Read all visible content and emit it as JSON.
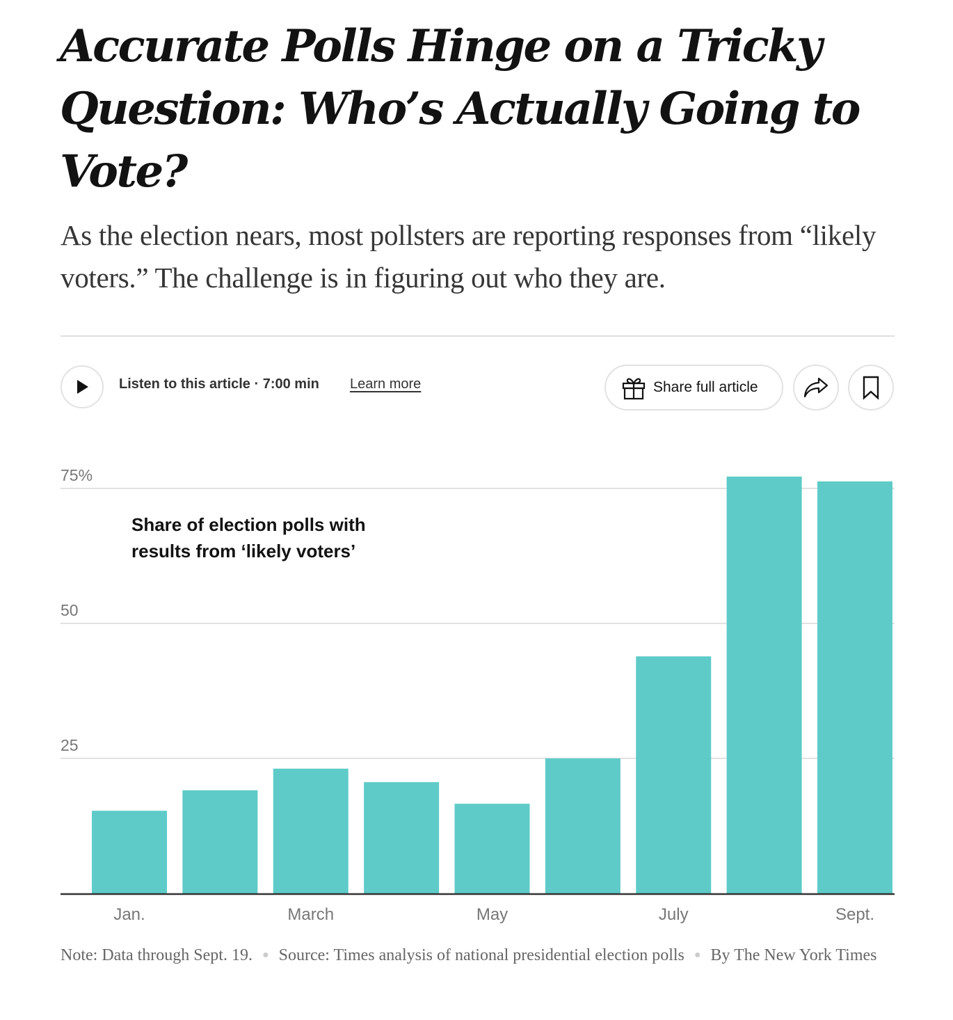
{
  "article": {
    "headline": "Accurate Polls Hinge on a Tricky Question: Who’s Actually Going to Vote?",
    "summary": "As the election nears, most pollsters are reporting responses from “likely voters.” The challenge is in figuring out who they are."
  },
  "toolbar": {
    "play_icon": "play-icon",
    "listen_label": "Listen to this article · 7:00 min",
    "learn_more_label": "Learn more",
    "share_full_article_label": "Share full article",
    "gift_icon": "gift-icon",
    "share_icon": "share-arrow-icon",
    "bookmark_icon": "bookmark-icon"
  },
  "chart_data": {
    "type": "bar",
    "title": "Share of election polls with results from ‘likely voters’",
    "xlabel": "",
    "ylabel": "",
    "categories": [
      "Jan.",
      "Feb.",
      "March",
      "April",
      "May",
      "June",
      "July",
      "Aug.",
      "Sept."
    ],
    "values": [
      15.3,
      19.1,
      23.1,
      20.6,
      16.6,
      25.0,
      43.9,
      77.2,
      76.3
    ],
    "unit": "%",
    "ylim": [
      0,
      75
    ],
    "y_ticks": [
      {
        "value": 25,
        "label": "25"
      },
      {
        "value": 50,
        "label": "50"
      },
      {
        "value": 75,
        "label": "75%"
      }
    ],
    "x_tick_labels": [
      {
        "category": "Jan.",
        "label": "Jan."
      },
      {
        "category": "March",
        "label": "March"
      },
      {
        "category": "May",
        "label": "May"
      },
      {
        "category": "July",
        "label": "July"
      },
      {
        "category": "Sept.",
        "label": "Sept."
      }
    ],
    "grid": true,
    "bar_color": "#5ecbc8",
    "note": "Note: Data through Sept. 19.",
    "source": "Source: Times analysis of national presidential election polls",
    "credit": "By The New York Times"
  }
}
